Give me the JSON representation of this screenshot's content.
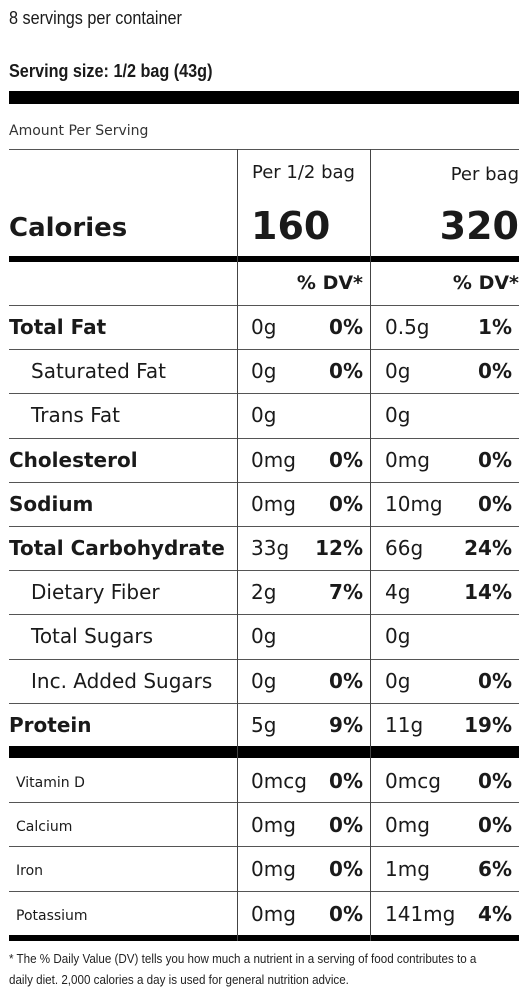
{
  "header": {
    "servings": "8 servings per container",
    "serving_size": "Serving size: 1/2 bag (43g)",
    "amount_per_serving": "Amount Per Serving"
  },
  "calories": {
    "label": "Calories",
    "col1_header": "Per 1/2 bag",
    "col2_header": "Per bag",
    "col1_value": "160",
    "col2_value": "320"
  },
  "dv_header": "% DV*",
  "nutrients": [
    {
      "label": "Total Fat",
      "bold": true,
      "indent": false,
      "amt1": "0g",
      "dv1": "0%",
      "amt2": "0.5g",
      "dv2": "1%"
    },
    {
      "label": "Saturated Fat",
      "bold": false,
      "indent": true,
      "amt1": "0g",
      "dv1": "0%",
      "amt2": "0g",
      "dv2": "0%"
    },
    {
      "label": "Trans Fat",
      "bold": false,
      "indent": true,
      "amt1": "0g",
      "dv1": "",
      "amt2": "0g",
      "dv2": ""
    },
    {
      "label": "Cholesterol",
      "bold": true,
      "indent": false,
      "amt1": "0mg",
      "dv1": "0%",
      "amt2": "0mg",
      "dv2": "0%"
    },
    {
      "label": "Sodium",
      "bold": true,
      "indent": false,
      "amt1": "0mg",
      "dv1": "0%",
      "amt2": "10mg",
      "dv2": "0%"
    },
    {
      "label": "Total Carbohydrate",
      "bold": true,
      "indent": false,
      "amt1": "33g",
      "dv1": "12%",
      "amt2": "66g",
      "dv2": "24%"
    },
    {
      "label": "Dietary Fiber",
      "bold": false,
      "indent": true,
      "amt1": "2g",
      "dv1": "7%",
      "amt2": "4g",
      "dv2": "14%"
    },
    {
      "label": "Total Sugars",
      "bold": false,
      "indent": true,
      "amt1": "0g",
      "dv1": "",
      "amt2": "0g",
      "dv2": ""
    },
    {
      "label": "Inc. Added Sugars",
      "bold": false,
      "indent": true,
      "amt1": "0g",
      "dv1": "0%",
      "amt2": "0g",
      "dv2": "0%"
    },
    {
      "label": "Protein",
      "bold": true,
      "indent": false,
      "amt1": "5g",
      "dv1": "9%",
      "amt2": "11g",
      "dv2": "19%"
    }
  ],
  "vitamins": [
    {
      "label": "Vitamin D",
      "amt1": "0mcg",
      "dv1": "0%",
      "amt2": "0mcg",
      "dv2": "0%"
    },
    {
      "label": "Calcium",
      "amt1": "0mg",
      "dv1": "0%",
      "amt2": "0mg",
      "dv2": "0%"
    },
    {
      "label": "Iron",
      "amt1": "0mg",
      "dv1": "0%",
      "amt2": "1mg",
      "dv2": "6%"
    },
    {
      "label": "Potassium",
      "amt1": "0mg",
      "dv1": "0%",
      "amt2": "141mg",
      "dv2": "4%"
    }
  ],
  "footnote": "* The % Daily Value (DV) tells you how much a nutrient in a serving of food contributes to a daily diet. 2,000 calories a day is used for general nutrition advice."
}
